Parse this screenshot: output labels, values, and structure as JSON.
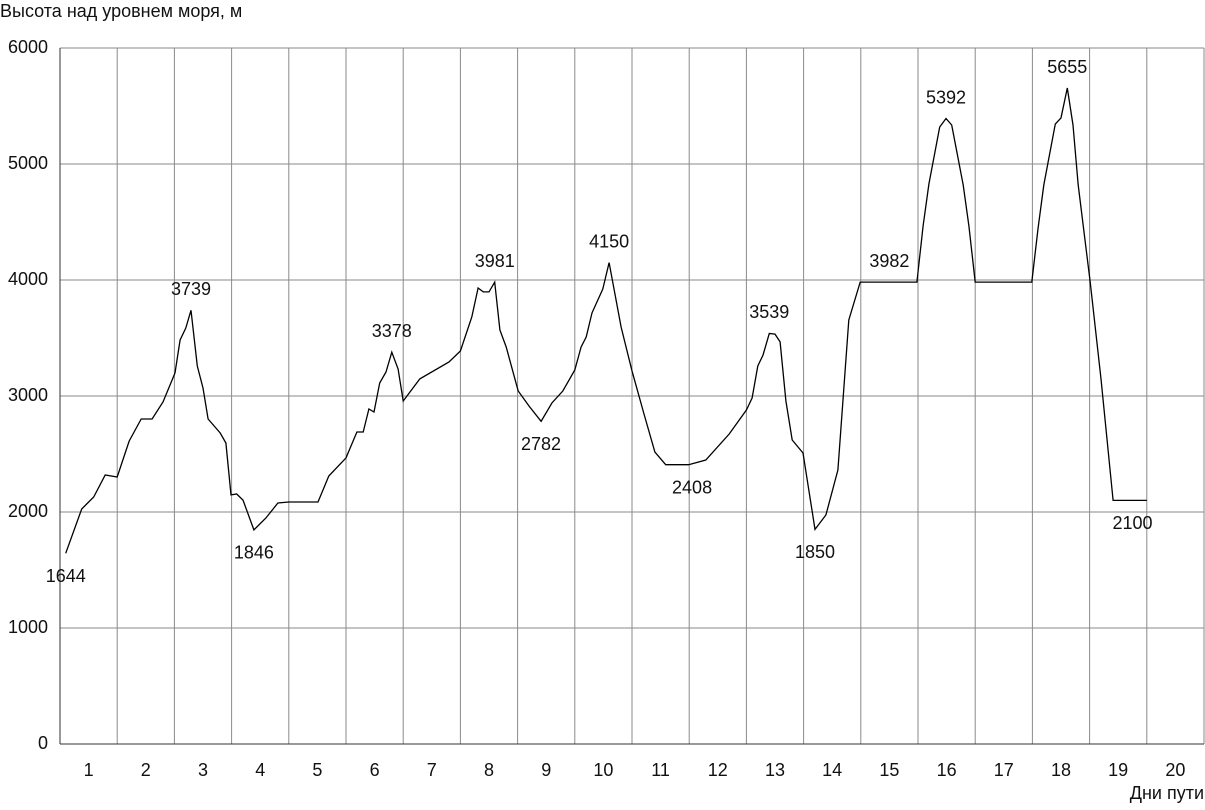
{
  "chart_data": {
    "type": "line",
    "y_axis_title": "Высота над уровнем моря, м",
    "x_axis_title": "Дни пути",
    "xlim": [
      0,
      20
    ],
    "ylim": [
      0,
      6000
    ],
    "yticks": [
      0,
      1000,
      2000,
      3000,
      4000,
      5000,
      6000
    ],
    "xticks": [
      {
        "value": 0.5,
        "label": "1"
      },
      {
        "value": 1.5,
        "label": "2"
      },
      {
        "value": 2.5,
        "label": "3"
      },
      {
        "value": 3.5,
        "label": "4"
      },
      {
        "value": 4.5,
        "label": "5"
      },
      {
        "value": 5.5,
        "label": "6"
      },
      {
        "value": 6.5,
        "label": "7"
      },
      {
        "value": 7.5,
        "label": "8"
      },
      {
        "value": 8.5,
        "label": "9"
      },
      {
        "value": 9.5,
        "label": "10"
      },
      {
        "value": 10.5,
        "label": "11"
      },
      {
        "value": 11.5,
        "label": "12"
      },
      {
        "value": 12.5,
        "label": "13"
      },
      {
        "value": 13.5,
        "label": "14"
      },
      {
        "value": 14.5,
        "label": "15"
      },
      {
        "value": 15.5,
        "label": "16"
      },
      {
        "value": 16.5,
        "label": "17"
      },
      {
        "value": 17.5,
        "label": "18"
      },
      {
        "value": 18.5,
        "label": "19"
      },
      {
        "value": 19.5,
        "label": "20"
      }
    ],
    "grid": true,
    "series": [
      {
        "color": "#000000",
        "x": [
          0.1,
          0.38,
          0.59,
          0.79,
          1.0,
          1.21,
          1.42,
          1.61,
          1.8,
          2.01,
          2.1,
          2.2,
          2.29,
          2.4,
          2.5,
          2.59,
          2.8,
          2.9,
          2.99,
          3.09,
          3.2,
          3.39,
          3.6,
          3.81,
          4.0,
          4.51,
          4.7,
          5.0,
          5.19,
          5.3,
          5.4,
          5.49,
          5.59,
          5.7,
          5.8,
          5.91,
          6.0,
          6.29,
          6.8,
          7.0,
          7.2,
          7.31,
          7.4,
          7.5,
          7.6,
          7.69,
          7.8,
          8.01,
          8.2,
          8.41,
          8.6,
          8.79,
          9.0,
          9.11,
          9.2,
          9.3,
          9.49,
          9.6,
          9.81,
          10.0,
          10.21,
          10.4,
          10.59,
          10.99,
          11.29,
          11.7,
          12.0,
          12.1,
          12.2,
          12.29,
          12.4,
          12.5,
          12.59,
          12.69,
          12.8,
          12.99,
          13.2,
          13.39,
          13.6,
          13.79,
          13.99,
          14.98,
          15.09,
          15.19,
          15.38,
          15.49,
          15.59,
          15.79,
          15.89,
          16.0,
          16.99,
          17.1,
          17.2,
          17.4,
          17.5,
          17.61,
          17.71,
          17.8,
          18.01,
          18.2,
          18.41,
          19.0
        ],
        "values": [
          1644,
          2026,
          2129,
          2319,
          2302,
          2612,
          2802,
          2802,
          2948,
          3198,
          3483,
          3586,
          3739,
          3259,
          3069,
          2802,
          2681,
          2595,
          2147,
          2155,
          2103,
          1846,
          1948,
          2078,
          2086,
          2086,
          2310,
          2466,
          2690,
          2690,
          2888,
          2862,
          3112,
          3207,
          3378,
          3233,
          2957,
          3147,
          3293,
          3388,
          3681,
          3931,
          3897,
          3897,
          3981,
          3569,
          3422,
          3043,
          2914,
          2782,
          2940,
          3043,
          3224,
          3422,
          3509,
          3716,
          3922,
          4150,
          3595,
          3216,
          2845,
          2517,
          2408,
          2408,
          2448,
          2672,
          2879,
          2983,
          3259,
          3353,
          3539,
          3534,
          3466,
          2957,
          2621,
          2509,
          1850,
          1974,
          2362,
          3655,
          3982,
          3982,
          4466,
          4828,
          5319,
          5392,
          5336,
          4819,
          4466,
          3982,
          3982,
          4448,
          4819,
          5345,
          5397,
          5655,
          5336,
          4819,
          3982,
          3147,
          2100,
          2100
        ]
      }
    ],
    "annotations": [
      {
        "x": 0.1,
        "y": 1644,
        "position": "below"
      },
      {
        "x": 2.29,
        "y": 3739,
        "position": "above"
      },
      {
        "x": 3.39,
        "y": 1846,
        "position": "below"
      },
      {
        "x": 5.8,
        "y": 3378,
        "position": "above"
      },
      {
        "x": 7.6,
        "y": 3981,
        "position": "above"
      },
      {
        "x": 8.41,
        "y": 2782,
        "position": "below"
      },
      {
        "x": 9.6,
        "y": 4150,
        "position": "above"
      },
      {
        "x": 11.05,
        "y": 2408,
        "position": "below"
      },
      {
        "x": 12.4,
        "y": 3539,
        "position": "above"
      },
      {
        "x": 13.2,
        "y": 1850,
        "position": "below"
      },
      {
        "x": 14.5,
        "y": 3982,
        "position": "above"
      },
      {
        "x": 15.49,
        "y": 5392,
        "position": "above"
      },
      {
        "x": 17.61,
        "y": 5655,
        "position": "above"
      },
      {
        "x": 18.75,
        "y": 2100,
        "position": "below"
      }
    ]
  }
}
